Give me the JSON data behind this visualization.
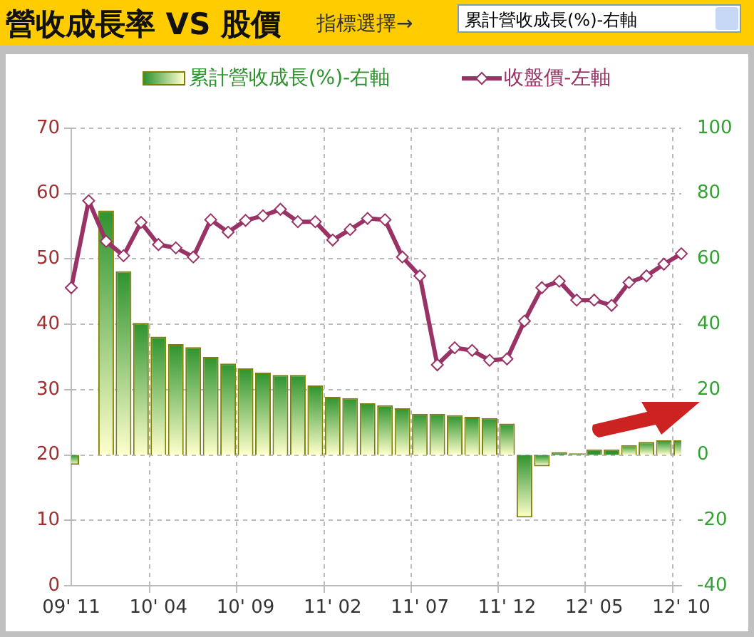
{
  "chart_data": {
    "type": "bar",
    "title": "營收成長率 VS 股價",
    "annotations": [
      "指標選擇→",
      "累計營收成長(%)-右軸"
    ],
    "categories": [
      "09' 11",
      null,
      null,
      null,
      null,
      "10' 04",
      null,
      null,
      null,
      null,
      "10' 09",
      null,
      null,
      null,
      null,
      "11' 02",
      null,
      null,
      null,
      null,
      "11' 07",
      null,
      null,
      null,
      null,
      "11' 12",
      null,
      null,
      null,
      null,
      "12' 05",
      null,
      null,
      null,
      null,
      "12' 10"
    ],
    "series": [
      {
        "name": "累計營收成長(%)-右軸",
        "axis": "y2",
        "color": "#2e932e",
        "values": [
          -3,
          null,
          74.8,
          56.2,
          40.4,
          36.2,
          33.9,
          33.0,
          30.0,
          28.0,
          26.5,
          25.2,
          24.5,
          24.5,
          21.3,
          17.8,
          17.4,
          15.8,
          15.2,
          14.3,
          12.6,
          12.6,
          12.2,
          11.7,
          11.3,
          9.6,
          -19.1,
          -3.5,
          0.9,
          0.5,
          1.7,
          1.7,
          3.0,
          4.0,
          4.5,
          4.5
        ]
      },
      {
        "name": "收盤價-左軸",
        "type": "line",
        "color": "#993366",
        "values": [
          45.6,
          58.9,
          52.7,
          50.5,
          55.6,
          52.2,
          51.7,
          50.3,
          56.0,
          54.1,
          55.9,
          56.6,
          57.6,
          55.7,
          55.7,
          52.9,
          54.5,
          56.2,
          56.0,
          50.3,
          47.4,
          33.8,
          36.4,
          36.0,
          34.5,
          34.7,
          40.5,
          45.6,
          46.6,
          43.7,
          43.7,
          42.9,
          46.4,
          47.4,
          49.2,
          50.8
        ]
      }
    ],
    "ylim": [
      0,
      70
    ],
    "yticks": [
      0,
      10,
      20,
      30,
      40,
      50,
      60,
      70
    ],
    "y2lim": [
      -40,
      100
    ],
    "y2ticks": [
      -40,
      -20,
      0,
      20,
      40,
      60,
      80,
      100
    ],
    "grid": true,
    "legend": "top",
    "marker": "diamond"
  }
}
